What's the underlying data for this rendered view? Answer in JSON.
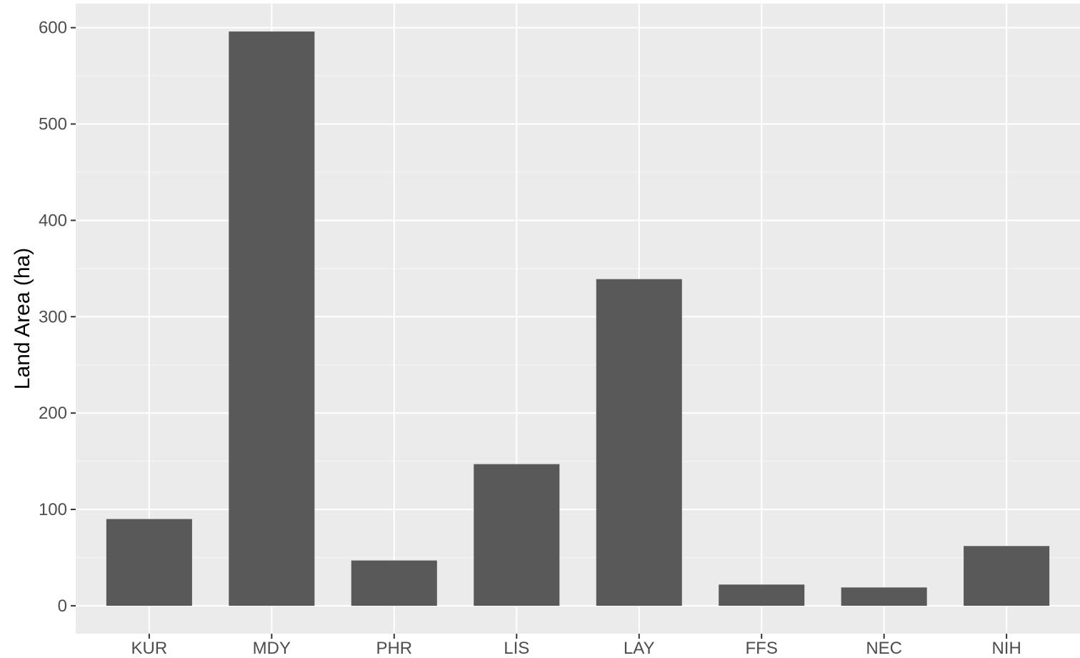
{
  "chart_data": {
    "type": "bar",
    "title": "",
    "xlabel": "",
    "ylabel": "Land Area (ha)",
    "categories": [
      "KUR",
      "MDY",
      "PHR",
      "LIS",
      "LAY",
      "FFS",
      "NEC",
      "NIH"
    ],
    "values": [
      90,
      596,
      47,
      147,
      339,
      22,
      19,
      62
    ],
    "ylim": [
      -29,
      625
    ],
    "yticks": [
      0,
      100,
      200,
      300,
      400,
      500,
      600
    ],
    "ytick_labels": [
      "0",
      "100",
      "200",
      "300",
      "400",
      "500",
      "600"
    ],
    "grid": true,
    "legend": "none",
    "colors": {
      "bar": "#595959",
      "panel": "#ebebeb",
      "grid_major": "#ffffff",
      "tick_text": "#4d4d4d",
      "tick_mark": "#333333",
      "title_text": "#000000"
    }
  }
}
